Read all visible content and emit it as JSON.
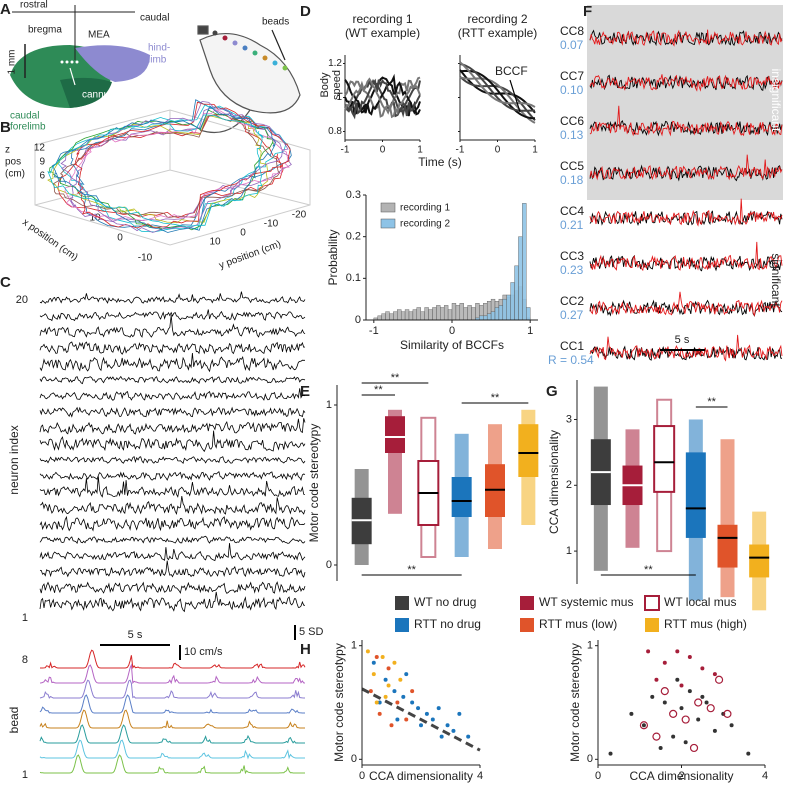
{
  "figure": {
    "panel_labels": [
      "A",
      "B",
      "C",
      "D",
      "E",
      "F",
      "G",
      "H"
    ],
    "a": {
      "rostral": "rostral",
      "caudal": "caudal",
      "bregma": "bregma",
      "mea": "MEA",
      "scale": "1 mm",
      "hindlimb_1": "hind-",
      "hindlimb_2": "limb",
      "forelimb_1": "caudal",
      "forelimb_2": "forelimb",
      "cannula": "cannula",
      "beads": "beads"
    },
    "b": {
      "z_label": [
        "z",
        "pos",
        "(cm)"
      ],
      "z_ticks": [
        12,
        9,
        6
      ],
      "x_label": "x position (cm)",
      "x_ticks": [
        10,
        0,
        -10
      ],
      "y_label": "y position (cm)",
      "y_ticks": [
        10,
        0,
        -10,
        -20
      ]
    },
    "c": {
      "neuron_top": 20,
      "neuron_bottom": 1,
      "neuron_label": "neuron index",
      "time_scale": "5 s",
      "sd_scale": "5 SD",
      "speed_scale": "10 cm/s",
      "bead_top": 8,
      "bead_bottom": 1,
      "bead_label": "bead"
    },
    "d": {
      "titles": [
        [
          "recording 1",
          "(WT example)"
        ],
        [
          "recording 2",
          "(RTT example)"
        ]
      ],
      "ylabel": [
        "Body",
        "speed"
      ],
      "yticks": [
        1.2,
        1,
        0.8
      ],
      "xlabel": "Time (s)",
      "xticks": [
        -1,
        0,
        1
      ],
      "arrow": "BCCF"
    },
    "f": {
      "components": [
        "CC8",
        "CC7",
        "CC6",
        "CC5",
        "CC4",
        "CC3",
        "CC2",
        "CC1"
      ],
      "correlations": [
        "0.07",
        "0.10",
        "0.13",
        "0.18",
        "0.21",
        "0.23",
        "0.27",
        "R = 0.54"
      ],
      "insignificant": "insignificant",
      "significant": "significant",
      "time_scale": "5 s"
    }
  },
  "chart_data": [
    {
      "type": "histogram",
      "xlabel": "Similarity of BCCFs",
      "ylabel": "Probability",
      "bins": [
        -1,
        -0.95,
        -0.9,
        -0.85,
        -0.8,
        -0.75,
        -0.7,
        -0.65,
        -0.6,
        -0.55,
        -0.5,
        -0.45,
        -0.4,
        -0.35,
        -0.3,
        -0.25,
        -0.2,
        -0.15,
        -0.1,
        -0.05,
        0,
        0.05,
        0.1,
        0.15,
        0.2,
        0.25,
        0.3,
        0.35,
        0.4,
        0.45,
        0.5,
        0.55,
        0.6,
        0.65,
        0.7,
        0.75,
        0.8,
        0.85,
        0.9,
        0.95,
        1
      ],
      "series": [
        {
          "name": "recording 1",
          "color": "#b3b3b3",
          "values": [
            0.005,
            0.01,
            0.015,
            0.02,
            0.015,
            0.02,
            0.025,
            0.02,
            0.025,
            0.02,
            0.025,
            0.03,
            0.02,
            0.03,
            0.025,
            0.03,
            0.035,
            0.03,
            0.035,
            0.025,
            0.04,
            0.035,
            0.04,
            0.03,
            0.035,
            0.03,
            0.04,
            0.035,
            0.04,
            0.045,
            0.05,
            0.045,
            0.05,
            0.06,
            0.055,
            0.06,
            0.07,
            0.08,
            0.05,
            0.005
          ]
        },
        {
          "name": "recording 2",
          "color": "#8ec3e6",
          "values": [
            0,
            0,
            0,
            0,
            0,
            0,
            0,
            0,
            0,
            0,
            0,
            0,
            0,
            0,
            0,
            0,
            0,
            0,
            0,
            0,
            0,
            0,
            0,
            0,
            0,
            0,
            0.005,
            0.01,
            0.01,
            0.015,
            0.02,
            0.03,
            0.035,
            0.05,
            0.06,
            0.09,
            0.13,
            0.2,
            0.28,
            0.03
          ]
        }
      ],
      "xlim": [
        -1.1,
        1.1
      ],
      "xticks": [
        -1,
        0,
        1
      ],
      "ylim": [
        0,
        0.3
      ],
      "yticks": [
        0,
        0.1,
        0.2,
        0.3
      ]
    },
    {
      "type": "box",
      "ylabel": "Motor code stereotypy",
      "categories": [
        "WT no drug",
        "WT systemic mus",
        "WT local mus",
        "RTT no drug",
        "RTT mus (low)",
        "RTT mus (high)"
      ],
      "colors": [
        "#3d3d3d",
        "#a61e3a",
        "#a61e3a",
        "#1b75bc",
        "#e0542a",
        "#f2b01e"
      ],
      "outline": [
        false,
        false,
        true,
        false,
        false,
        false
      ],
      "boxes": [
        {
          "min": 0,
          "q1": 0.13,
          "median": 0.28,
          "q3": 0.42,
          "max": 0.6
        },
        {
          "min": 0.32,
          "q1": 0.7,
          "median": 0.8,
          "q3": 0.93,
          "max": 0.97
        },
        {
          "min": 0.05,
          "q1": 0.25,
          "median": 0.45,
          "q3": 0.65,
          "max": 0.92
        },
        {
          "min": 0.05,
          "q1": 0.3,
          "median": 0.4,
          "q3": 0.55,
          "max": 0.82
        },
        {
          "min": 0.1,
          "q1": 0.3,
          "median": 0.47,
          "q3": 0.63,
          "max": 0.88
        },
        {
          "min": 0.25,
          "q1": 0.55,
          "median": 0.7,
          "q3": 0.88,
          "max": 0.97
        }
      ],
      "ylim": [
        -0.1,
        1.125
      ],
      "yticks": [
        0,
        1
      ],
      "annotations": [
        "**",
        "**",
        "**",
        "**"
      ]
    },
    {
      "type": "box",
      "ylabel": "CCA dimensionality",
      "categories": [
        "WT no drug",
        "WT systemic mus",
        "WT local mus",
        "RTT no drug",
        "RTT mus (low)",
        "RTT mus (high)"
      ],
      "colors": [
        "#3d3d3d",
        "#a61e3a",
        "#a61e3a",
        "#1b75bc",
        "#e0542a",
        "#f2b01e"
      ],
      "outline": [
        false,
        false,
        true,
        false,
        false,
        false
      ],
      "boxes": [
        {
          "min": 0.7,
          "q1": 1.7,
          "median": 2.2,
          "q3": 2.7,
          "max": 3.5
        },
        {
          "min": 1.05,
          "q1": 1.7,
          "median": 2.0,
          "q3": 2.3,
          "max": 2.85
        },
        {
          "min": 1.0,
          "q1": 1.9,
          "median": 2.35,
          "q3": 2.9,
          "max": 3.3
        },
        {
          "min": 0.25,
          "q1": 1.2,
          "median": 1.65,
          "q3": 2.5,
          "max": 3.0
        },
        {
          "min": 0.3,
          "q1": 0.75,
          "median": 1.2,
          "q3": 1.4,
          "max": 2.7
        },
        {
          "min": 0.1,
          "q1": 0.6,
          "median": 0.9,
          "q3": 1.1,
          "max": 1.6
        }
      ],
      "ylim": [
        0.5,
        3.6
      ],
      "yticks": [
        1,
        2,
        3
      ],
      "annotations": [
        "**",
        "**"
      ]
    },
    {
      "type": "scatter",
      "xlabel": "CCA dimensionality",
      "ylabel": "Motor code stereotypy",
      "series": [
        {
          "color": "#1b75bc",
          "marker": "filled",
          "x": [
            0.4,
            0.8,
            1.1,
            1.4,
            1.7,
            1.9,
            2.2,
            2.4,
            2.6,
            2.9,
            3.1,
            3.3,
            3.6,
            1.5,
            2.0,
            2.7,
            0.6,
            1.2
          ],
          "values": [
            0.85,
            0.7,
            0.6,
            0.55,
            0.5,
            0.45,
            0.4,
            0.35,
            0.45,
            0.3,
            0.25,
            0.4,
            0.2,
            0.75,
            0.3,
            0.2,
            0.5,
            0.35
          ]
        },
        {
          "color": "#e0542a",
          "marker": "filled",
          "x": [
            0.3,
            0.6,
            0.9,
            1.0,
            1.2,
            1.5,
            1.7,
            0.5
          ],
          "values": [
            0.6,
            0.4,
            0.8,
            0.3,
            0.5,
            0.35,
            0.6,
            0.9
          ]
        },
        {
          "color": "#f2b01e",
          "marker": "filled",
          "x": [
            0.2,
            0.4,
            0.7,
            0.9,
            1.1,
            1.3,
            0.5,
            0.8
          ],
          "values": [
            0.95,
            0.75,
            0.9,
            0.65,
            0.85,
            0.7,
            0.5,
            0.55
          ]
        }
      ],
      "trend": {
        "color": "#444444",
        "x": [
          0,
          4
        ],
        "values": [
          0.62,
          0.08
        ]
      },
      "xlim": [
        0,
        4
      ],
      "xticks": [
        0,
        4
      ],
      "ylim": [
        -0.05,
        1.05
      ],
      "yticks": [
        0,
        1
      ]
    },
    {
      "type": "scatter",
      "xlabel": "CCA dimensionality",
      "ylabel": "Motor code stereotypy",
      "series": [
        {
          "color": "#333333",
          "marker": "filled",
          "x": [
            0.3,
            0.8,
            1.1,
            1.3,
            1.6,
            1.8,
            2.0,
            2.2,
            2.4,
            2.6,
            2.8,
            3.0,
            3.2,
            1.5,
            2.1,
            2.5,
            1.9,
            3.6
          ],
          "values": [
            0.05,
            0.4,
            0.3,
            0.55,
            0.5,
            0.2,
            0.45,
            0.6,
            0.35,
            0.5,
            0.25,
            0.4,
            0.3,
            0.1,
            0.15,
            0.55,
            0.7,
            0.05
          ]
        },
        {
          "color": "#a61e3a",
          "marker": "filled",
          "x": [
            1.2,
            1.6,
            1.9,
            2.2,
            2.5,
            2.8,
            1.4,
            2.0
          ],
          "values": [
            0.95,
            0.85,
            0.95,
            0.9,
            0.8,
            0.75,
            0.7,
            0.65
          ]
        },
        {
          "color": "#a61e3a",
          "marker": "open",
          "x": [
            1.1,
            1.4,
            1.8,
            2.1,
            2.4,
            2.7,
            2.9,
            3.1,
            2.3,
            1.6
          ],
          "values": [
            0.3,
            0.2,
            0.4,
            0.35,
            0.5,
            0.45,
            0.7,
            0.4,
            0.1,
            0.6
          ]
        }
      ],
      "xlim": [
        0,
        4
      ],
      "xticks": [
        0,
        2,
        4
      ],
      "ylim": [
        -0.05,
        1.05
      ],
      "yticks": [
        0,
        1
      ]
    }
  ]
}
